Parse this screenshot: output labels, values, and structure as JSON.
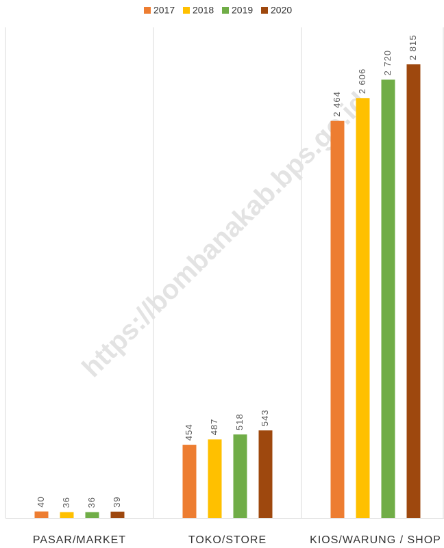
{
  "chart_data": {
    "type": "bar",
    "watermark": "https://bombanakab.bps.go.id",
    "categories": [
      "PASAR/MARKET",
      "TOKO/STORE",
      "KIOS/WARUNG / SHOP"
    ],
    "series": [
      {
        "name": "2017",
        "color": "#ed7d31",
        "values": [
          40,
          454,
          2464
        ],
        "value_labels": [
          "40",
          "454",
          "2 464"
        ]
      },
      {
        "name": "2018",
        "color": "#ffc000",
        "values": [
          36,
          487,
          2606
        ],
        "value_labels": [
          "36",
          "487",
          "2 606"
        ]
      },
      {
        "name": "2019",
        "color": "#70ad47",
        "values": [
          36,
          518,
          2720
        ],
        "value_labels": [
          "36",
          "518",
          "2 720"
        ]
      },
      {
        "name": "2020",
        "color": "#9e480e",
        "values": [
          39,
          543,
          2815
        ],
        "value_labels": [
          "39",
          "543",
          "2 815"
        ]
      }
    ],
    "ylim": [
      0,
      3000
    ],
    "legend": "top"
  }
}
